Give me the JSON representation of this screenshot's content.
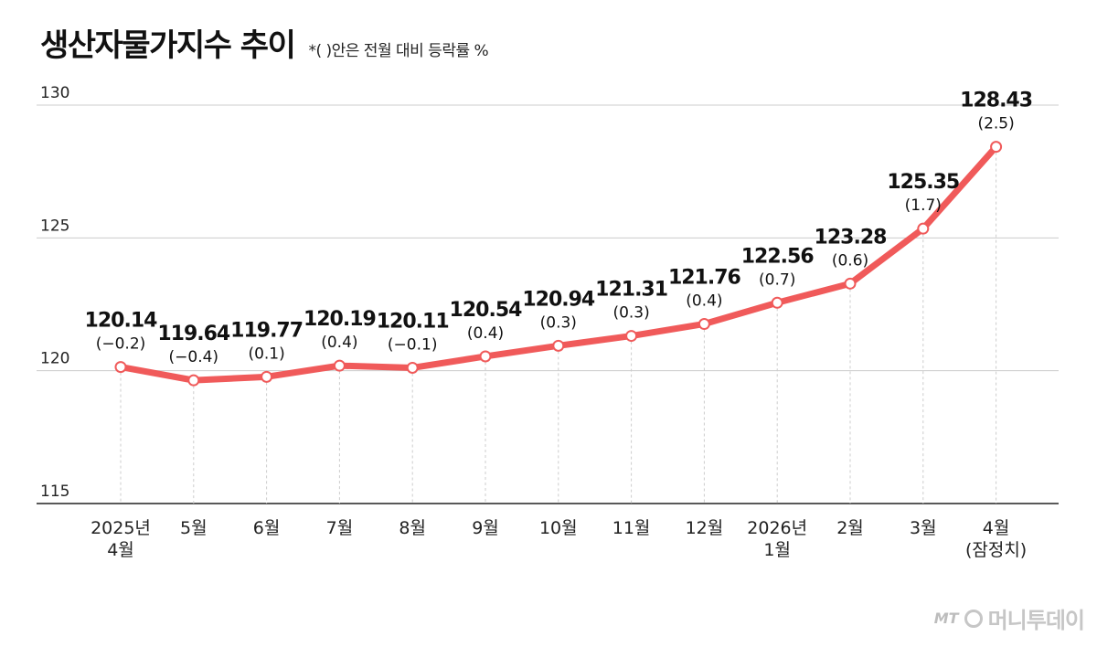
{
  "title": "생산자물가지수 추이",
  "subtitle": "*( )안은 전월 대비 등락률 %",
  "brand": {
    "mark": "MT",
    "name": "머니투데이"
  },
  "colors": {
    "line": "#f05a5a",
    "grid": "#cccccc",
    "dash": "#cccccc",
    "axis": "#222222"
  },
  "chart_data": {
    "type": "line",
    "title": "생산자물가지수 추이",
    "xlabel": "",
    "ylabel": "",
    "ylim": [
      115,
      130
    ],
    "yticks": [
      "115",
      "120",
      "125",
      "130"
    ],
    "grid": true,
    "categories": [
      [
        "2025년",
        "4월"
      ],
      [
        "5월"
      ],
      [
        "6월"
      ],
      [
        "7월"
      ],
      [
        "8월"
      ],
      [
        "9월"
      ],
      [
        "10월"
      ],
      [
        "11월"
      ],
      [
        "12월"
      ],
      [
        "2026년",
        "1월"
      ],
      [
        "2월"
      ],
      [
        "3월"
      ],
      [
        "4월",
        "(잠정치)"
      ]
    ],
    "values": [
      120.14,
      119.64,
      119.77,
      120.19,
      120.11,
      120.54,
      120.94,
      121.31,
      121.76,
      122.56,
      123.28,
      125.35,
      128.43
    ],
    "value_labels": [
      "120.14",
      "119.64",
      "119.77",
      "120.19",
      "120.11",
      "120.54",
      "120.94",
      "121.31",
      "121.76",
      "122.56",
      "123.28",
      "125.35",
      "128.43"
    ],
    "change_labels": [
      "(−0.2)",
      "(−0.4)",
      "(0.1)",
      "(0.4)",
      "(−0.1)",
      "(0.4)",
      "(0.3)",
      "(0.3)",
      "(0.4)",
      "(0.7)",
      "(0.6)",
      "(1.7)",
      "(2.5)"
    ]
  }
}
